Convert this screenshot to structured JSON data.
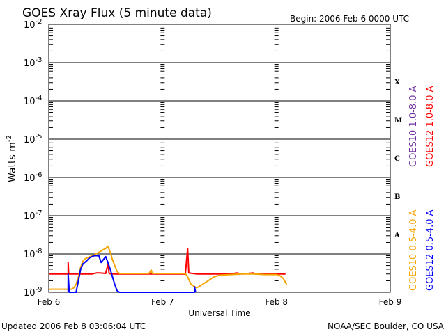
{
  "chart_data": {
    "type": "line",
    "title": "GOES Xray Flux (5 minute data)",
    "begin_label": "Begin:  2006 Feb 6 0000 UTC",
    "ylabel": "Watts m",
    "ylabel_sup": "-2",
    "xlabel": "Universal Time",
    "updated_label": "Updated 2006 Feb  8 03:06:04 UTC",
    "source_label": "NOAA/SEC Boulder, CO USA",
    "y_scale": "log",
    "ylim": [
      1e-09,
      0.01
    ],
    "xlim": [
      0,
      3
    ],
    "y_ticks": [
      {
        "value": 1e-09,
        "base": "10",
        "exp": "-9"
      },
      {
        "value": 1e-08,
        "base": "10",
        "exp": "-8"
      },
      {
        "value": 1e-07,
        "base": "10",
        "exp": "-7"
      },
      {
        "value": 1e-06,
        "base": "10",
        "exp": "-6"
      },
      {
        "value": 1e-05,
        "base": "10",
        "exp": "-5"
      },
      {
        "value": 0.0001,
        "base": "10",
        "exp": "-4"
      },
      {
        "value": 0.001,
        "base": "10",
        "exp": "-3"
      },
      {
        "value": 0.01,
        "base": "10",
        "exp": "-2"
      }
    ],
    "x_ticks": [
      {
        "value": 0,
        "label": "Feb 6"
      },
      {
        "value": 1,
        "label": "Feb 7"
      },
      {
        "value": 2,
        "label": "Feb 8"
      },
      {
        "value": 3,
        "label": "Feb 9"
      }
    ],
    "flare_classes": [
      {
        "label": "A",
        "value": 3.2e-08
      },
      {
        "label": "B",
        "value": 3.2e-07
      },
      {
        "label": "C",
        "value": 3.2e-06
      },
      {
        "label": "M",
        "value": 3.2e-05
      },
      {
        "label": "X",
        "value": 0.00032
      }
    ],
    "grid": true,
    "legend_right": [
      {
        "name": "GOES10 1.0-8.0 A",
        "color": "#7030a0"
      },
      {
        "name": "GOES12 1.0-8.0 A",
        "color": "#ff0000"
      }
    ],
    "legend_bottom": [
      {
        "name": "GOES10 0.5-4.0 A",
        "color": "#f5a400"
      },
      {
        "name": "GOES12 0.5-4.0 A",
        "color": "#0000ff"
      }
    ],
    "series": [
      {
        "name": "GOES12 1.0-8.0 A",
        "color": "#ff0000",
        "points": [
          [
            0.0,
            3e-09
          ],
          [
            0.16,
            3e-09
          ],
          [
            0.17,
            3e-09
          ],
          [
            0.17,
            6e-09
          ],
          [
            0.175,
            3e-09
          ],
          [
            0.38,
            3e-09
          ],
          [
            0.42,
            3.2e-09
          ],
          [
            0.45,
            3.2e-09
          ],
          [
            0.5,
            3.1e-09
          ],
          [
            0.52,
            5.5e-09
          ],
          [
            0.53,
            3.1e-09
          ],
          [
            0.55,
            3e-09
          ],
          [
            0.8,
            3e-09
          ],
          [
            1.0,
            3e-09
          ],
          [
            1.2,
            3e-09
          ],
          [
            1.21,
            6.5e-09
          ],
          [
            1.22,
            1.4e-08
          ],
          [
            1.23,
            3.2e-09
          ],
          [
            1.3,
            3e-09
          ],
          [
            1.6,
            3e-09
          ],
          [
            1.65,
            3.2e-09
          ],
          [
            1.7,
            3e-09
          ],
          [
            1.8,
            3.2e-09
          ],
          [
            1.81,
            3e-09
          ],
          [
            2.08,
            3e-09
          ]
        ]
      },
      {
        "name": "GOES10 0.5-4.0 A",
        "color": "#f5a400",
        "points": [
          [
            0.0,
            1.2e-09
          ],
          [
            0.2,
            1.2e-09
          ],
          [
            0.22,
            1.3e-09
          ],
          [
            0.24,
            1.6e-09
          ],
          [
            0.26,
            2.5e-09
          ],
          [
            0.28,
            4.5e-09
          ],
          [
            0.3,
            6.5e-09
          ],
          [
            0.32,
            7.5e-09
          ],
          [
            0.36,
            8.5e-09
          ],
          [
            0.4,
            9.5e-09
          ],
          [
            0.44,
            1.1e-08
          ],
          [
            0.48,
            1.3e-08
          ],
          [
            0.5,
            1.4e-08
          ],
          [
            0.52,
            1.6e-08
          ],
          [
            0.54,
            1.1e-08
          ],
          [
            0.56,
            7e-09
          ],
          [
            0.58,
            5e-09
          ],
          [
            0.6,
            3.5e-09
          ],
          [
            0.62,
            3.1e-09
          ],
          [
            0.7,
            3.1e-09
          ],
          [
            0.88,
            3.1e-09
          ],
          [
            0.9,
            3.8e-09
          ],
          [
            0.91,
            3.1e-09
          ],
          [
            1.0,
            3.1e-09
          ],
          [
            1.2,
            3.1e-09
          ],
          [
            1.22,
            2.5e-09
          ],
          [
            1.25,
            1.6e-09
          ],
          [
            1.3,
            1.3e-09
          ],
          [
            1.35,
            1.6e-09
          ],
          [
            1.4,
            2e-09
          ],
          [
            1.45,
            2.5e-09
          ],
          [
            1.5,
            2.8e-09
          ],
          [
            1.6,
            2.9e-09
          ],
          [
            1.7,
            3e-09
          ],
          [
            1.8,
            3e-09
          ],
          [
            1.9,
            2.9e-09
          ],
          [
            2.0,
            2.9e-09
          ],
          [
            2.03,
            2.7e-09
          ],
          [
            2.06,
            2.3e-09
          ],
          [
            2.08,
            1.8e-09
          ],
          [
            2.09,
            1.6e-09
          ]
        ]
      },
      {
        "name": "GOES12 0.5-4.0 A",
        "color": "#0000ff",
        "points": [
          [
            0.17,
            1e-09
          ],
          [
            0.17,
            3e-09
          ],
          [
            0.18,
            1e-09
          ],
          [
            0.24,
            1e-09
          ],
          [
            0.26,
            2e-09
          ],
          [
            0.28,
            4e-09
          ],
          [
            0.3,
            5.5e-09
          ],
          [
            0.33,
            6.5e-09
          ],
          [
            0.36,
            8e-09
          ],
          [
            0.4,
            9e-09
          ],
          [
            0.44,
            9e-09
          ],
          [
            0.46,
            6e-09
          ],
          [
            0.5,
            8.5e-09
          ],
          [
            0.52,
            6e-09
          ],
          [
            0.54,
            4e-09
          ],
          [
            0.56,
            2.5e-09
          ],
          [
            0.58,
            1.6e-09
          ],
          [
            0.6,
            1.1e-09
          ],
          [
            0.62,
            1e-09
          ],
          [
            1.28,
            1e-09
          ],
          [
            1.28,
            1.4e-09
          ],
          [
            1.29,
            1e-09
          ]
        ]
      }
    ]
  }
}
